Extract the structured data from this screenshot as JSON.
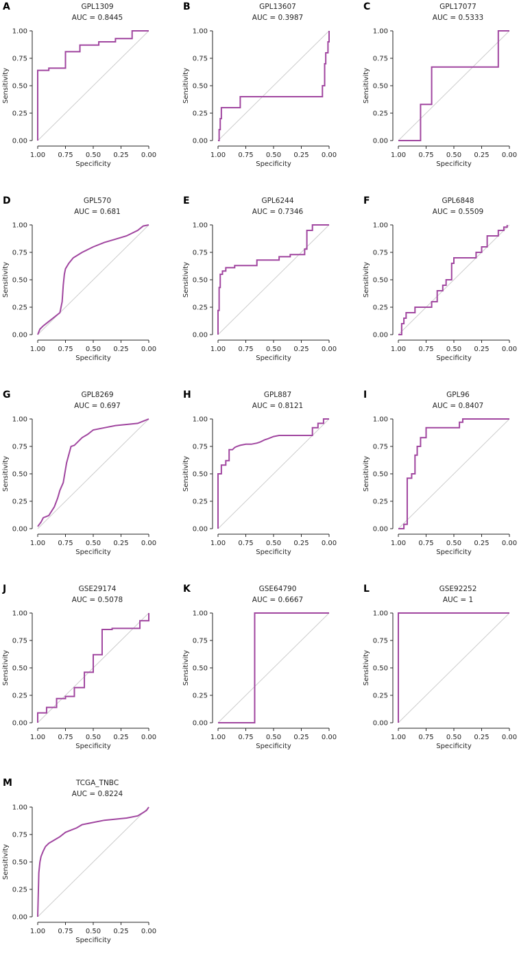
{
  "figure": {
    "x_axis_label": "Specificity",
    "y_axis_label": "Sensitivity",
    "x_ticks": [
      "1.00",
      "0.75",
      "0.50",
      "0.25",
      "0.00"
    ],
    "y_ticks": [
      "0.00",
      "0.25",
      "0.50",
      "0.75",
      "1.00"
    ]
  },
  "colors": {
    "roc_curve": "#a0459f",
    "diagonal": "#cccccc",
    "axis": "#222222"
  },
  "chart_data": [
    {
      "panel": "A",
      "type": "line",
      "title": "GPL1309",
      "subtitle": "AUC = 0.8445",
      "xlabel": "Specificity",
      "ylabel": "Sensitivity",
      "xlim": [
        1,
        0
      ],
      "ylim": [
        0,
        1
      ],
      "specificity": [
        1.0,
        1.0,
        0.9,
        0.9,
        0.75,
        0.75,
        0.62,
        0.62,
        0.45,
        0.45,
        0.3,
        0.3,
        0.15,
        0.15,
        0.0
      ],
      "sensitivity": [
        0.0,
        0.64,
        0.64,
        0.66,
        0.66,
        0.81,
        0.81,
        0.87,
        0.87,
        0.9,
        0.9,
        0.93,
        0.93,
        1.0,
        1.0
      ]
    },
    {
      "panel": "B",
      "type": "line",
      "title": "GPL13607",
      "subtitle": "AUC = 0.3987",
      "xlabel": "Specificity",
      "ylabel": "Sensitivity",
      "xlim": [
        1,
        0
      ],
      "ylim": [
        0,
        1
      ],
      "specificity": [
        1.0,
        0.99,
        0.99,
        0.98,
        0.98,
        0.97,
        0.97,
        0.8,
        0.8,
        0.06,
        0.06,
        0.04,
        0.04,
        0.03,
        0.03,
        0.01,
        0.01,
        0.0,
        0.0
      ],
      "sensitivity": [
        0.0,
        0.0,
        0.1,
        0.1,
        0.2,
        0.2,
        0.3,
        0.3,
        0.4,
        0.4,
        0.5,
        0.5,
        0.7,
        0.7,
        0.8,
        0.8,
        0.9,
        0.9,
        1.0
      ]
    },
    {
      "panel": "C",
      "type": "line",
      "title": "GPL17077",
      "subtitle": "AUC = 0.5333",
      "xlabel": "Specificity",
      "ylabel": "Sensitivity",
      "xlim": [
        1,
        0
      ],
      "ylim": [
        0,
        1
      ],
      "specificity": [
        1.0,
        0.8,
        0.8,
        0.7,
        0.7,
        0.1,
        0.1,
        0.0
      ],
      "sensitivity": [
        0.0,
        0.0,
        0.33,
        0.33,
        0.67,
        0.67,
        1.0,
        1.0
      ]
    },
    {
      "panel": "D",
      "type": "line",
      "title": "GPL570",
      "subtitle": "AUC = 0.681",
      "xlabel": "Specificity",
      "ylabel": "Sensitivity",
      "xlim": [
        1,
        0
      ],
      "ylim": [
        0,
        1
      ],
      "specificity": [
        1.0,
        0.98,
        0.95,
        0.9,
        0.85,
        0.8,
        0.78,
        0.77,
        0.76,
        0.75,
        0.72,
        0.68,
        0.6,
        0.5,
        0.4,
        0.3,
        0.2,
        0.1,
        0.05,
        0.0
      ],
      "sensitivity": [
        0.0,
        0.05,
        0.08,
        0.12,
        0.16,
        0.2,
        0.3,
        0.45,
        0.55,
        0.6,
        0.65,
        0.7,
        0.75,
        0.8,
        0.84,
        0.87,
        0.9,
        0.95,
        0.99,
        1.0
      ]
    },
    {
      "panel": "E",
      "type": "line",
      "title": "GPL6244",
      "subtitle": "AUC = 0.7346",
      "xlabel": "Specificity",
      "ylabel": "Sensitivity",
      "xlim": [
        1,
        0
      ],
      "ylim": [
        0,
        1
      ],
      "specificity": [
        1.0,
        1.0,
        0.99,
        0.99,
        0.98,
        0.98,
        0.96,
        0.96,
        0.93,
        0.93,
        0.85,
        0.85,
        0.65,
        0.65,
        0.45,
        0.45,
        0.35,
        0.35,
        0.22,
        0.22,
        0.2,
        0.2,
        0.15,
        0.15,
        0.0
      ],
      "sensitivity": [
        0.0,
        0.22,
        0.22,
        0.43,
        0.43,
        0.55,
        0.55,
        0.58,
        0.58,
        0.61,
        0.61,
        0.63,
        0.63,
        0.68,
        0.68,
        0.71,
        0.71,
        0.73,
        0.73,
        0.78,
        0.78,
        0.95,
        0.95,
        1.0,
        1.0
      ]
    },
    {
      "panel": "F",
      "type": "line",
      "title": "GPL6848",
      "subtitle": "AUC = 0.5509",
      "xlabel": "Specificity",
      "ylabel": "Sensitivity",
      "xlim": [
        1,
        0
      ],
      "ylim": [
        0,
        1
      ],
      "specificity": [
        1.0,
        0.97,
        0.97,
        0.95,
        0.95,
        0.93,
        0.93,
        0.85,
        0.85,
        0.7,
        0.7,
        0.65,
        0.65,
        0.6,
        0.6,
        0.57,
        0.57,
        0.52,
        0.52,
        0.5,
        0.5,
        0.3,
        0.3,
        0.25,
        0.25,
        0.2,
        0.2,
        0.1,
        0.1,
        0.05,
        0.05,
        0.02,
        0.02
      ],
      "sensitivity": [
        0.0,
        0.0,
        0.1,
        0.1,
        0.15,
        0.15,
        0.2,
        0.2,
        0.25,
        0.25,
        0.3,
        0.3,
        0.4,
        0.4,
        0.45,
        0.45,
        0.5,
        0.5,
        0.65,
        0.65,
        0.7,
        0.7,
        0.75,
        0.75,
        0.8,
        0.8,
        0.9,
        0.9,
        0.95,
        0.95,
        0.98,
        0.98,
        1.0
      ]
    },
    {
      "panel": "G",
      "type": "line",
      "title": "GPL8269",
      "subtitle": "AUC = 0.697",
      "xlabel": "Specificity",
      "ylabel": "Sensitivity",
      "xlim": [
        1,
        0
      ],
      "ylim": [
        0,
        1
      ],
      "specificity": [
        1.0,
        0.97,
        0.95,
        0.9,
        0.85,
        0.82,
        0.8,
        0.77,
        0.74,
        0.7,
        0.67,
        0.6,
        0.55,
        0.5,
        0.4,
        0.3,
        0.2,
        0.1,
        0.05,
        0.0
      ],
      "sensitivity": [
        0.02,
        0.06,
        0.1,
        0.12,
        0.2,
        0.28,
        0.35,
        0.42,
        0.6,
        0.75,
        0.76,
        0.83,
        0.86,
        0.9,
        0.92,
        0.94,
        0.95,
        0.96,
        0.98,
        1.0
      ]
    },
    {
      "panel": "H",
      "type": "line",
      "title": "GPL887",
      "subtitle": "AUC = 0.8121",
      "xlabel": "Specificity",
      "ylabel": "Sensitivity",
      "xlim": [
        1,
        0
      ],
      "ylim": [
        0,
        1
      ],
      "specificity": [
        1.0,
        1.0,
        0.97,
        0.97,
        0.93,
        0.93,
        0.9,
        0.9,
        0.87,
        0.85,
        0.83,
        0.8,
        0.75,
        0.7,
        0.65,
        0.62,
        0.58,
        0.55,
        0.5,
        0.45,
        0.35,
        0.25,
        0.15,
        0.15,
        0.1,
        0.1,
        0.05,
        0.05,
        0.0
      ],
      "sensitivity": [
        0.0,
        0.5,
        0.5,
        0.58,
        0.58,
        0.62,
        0.62,
        0.72,
        0.72,
        0.74,
        0.75,
        0.76,
        0.77,
        0.77,
        0.78,
        0.79,
        0.81,
        0.82,
        0.84,
        0.85,
        0.85,
        0.85,
        0.85,
        0.92,
        0.92,
        0.96,
        0.96,
        1.0,
        1.0
      ]
    },
    {
      "panel": "I",
      "type": "line",
      "title": "GPL96",
      "subtitle": "AUC = 0.8407",
      "xlabel": "Specificity",
      "ylabel": "Sensitivity",
      "xlim": [
        1,
        0
      ],
      "ylim": [
        0,
        1
      ],
      "specificity": [
        1.0,
        0.95,
        0.95,
        0.92,
        0.92,
        0.88,
        0.88,
        0.85,
        0.85,
        0.83,
        0.83,
        0.8,
        0.8,
        0.75,
        0.75,
        0.45,
        0.45,
        0.42,
        0.42,
        0.0
      ],
      "sensitivity": [
        0.0,
        0.0,
        0.04,
        0.04,
        0.46,
        0.46,
        0.5,
        0.5,
        0.67,
        0.67,
        0.75,
        0.75,
        0.83,
        0.83,
        0.92,
        0.92,
        0.97,
        0.97,
        1.0,
        1.0
      ]
    },
    {
      "panel": "J",
      "type": "line",
      "title": "GSE29174",
      "subtitle": "AUC = 0.5078",
      "xlabel": "Specificity",
      "ylabel": "Sensitivity",
      "xlim": [
        1,
        0
      ],
      "ylim": [
        0,
        1
      ],
      "specificity": [
        1.0,
        1.0,
        0.92,
        0.92,
        0.83,
        0.83,
        0.75,
        0.75,
        0.67,
        0.67,
        0.58,
        0.58,
        0.5,
        0.5,
        0.42,
        0.42,
        0.33,
        0.33,
        0.25,
        0.25,
        0.08,
        0.08,
        0.0,
        0.0
      ],
      "sensitivity": [
        0.0,
        0.09,
        0.09,
        0.14,
        0.14,
        0.22,
        0.22,
        0.24,
        0.24,
        0.32,
        0.32,
        0.46,
        0.46,
        0.62,
        0.62,
        0.85,
        0.85,
        0.86,
        0.86,
        0.86,
        0.86,
        0.93,
        0.93,
        1.0
      ]
    },
    {
      "panel": "K",
      "type": "line",
      "title": "GSE64790",
      "subtitle": "AUC = 0.6667",
      "xlabel": "Specificity",
      "ylabel": "Sensitivity",
      "xlim": [
        1,
        0
      ],
      "ylim": [
        0,
        1
      ],
      "specificity": [
        1.0,
        0.67,
        0.67,
        0.0
      ],
      "sensitivity": [
        0.0,
        0.0,
        1.0,
        1.0
      ]
    },
    {
      "panel": "L",
      "type": "line",
      "title": "GSE92252",
      "subtitle": "AUC = 1",
      "xlabel": "Specificity",
      "ylabel": "Sensitivity",
      "xlim": [
        1,
        0
      ],
      "ylim": [
        0,
        1
      ],
      "specificity": [
        1.0,
        1.0,
        0.0
      ],
      "sensitivity": [
        0.0,
        1.0,
        1.0
      ]
    },
    {
      "panel": "M",
      "type": "line",
      "title": "TCGA_TNBC",
      "subtitle": "AUC = 0.8224",
      "xlabel": "Specificity",
      "ylabel": "Sensitivity",
      "xlim": [
        1,
        0
      ],
      "ylim": [
        0,
        1
      ],
      "specificity": [
        1.0,
        0.99,
        0.98,
        0.97,
        0.95,
        0.93,
        0.9,
        0.85,
        0.8,
        0.75,
        0.7,
        0.65,
        0.6,
        0.5,
        0.4,
        0.3,
        0.2,
        0.1,
        0.05,
        0.02,
        0.0
      ],
      "sensitivity": [
        0.0,
        0.4,
        0.5,
        0.55,
        0.6,
        0.64,
        0.67,
        0.7,
        0.73,
        0.77,
        0.79,
        0.81,
        0.84,
        0.86,
        0.88,
        0.89,
        0.9,
        0.92,
        0.95,
        0.97,
        1.0
      ]
    }
  ]
}
